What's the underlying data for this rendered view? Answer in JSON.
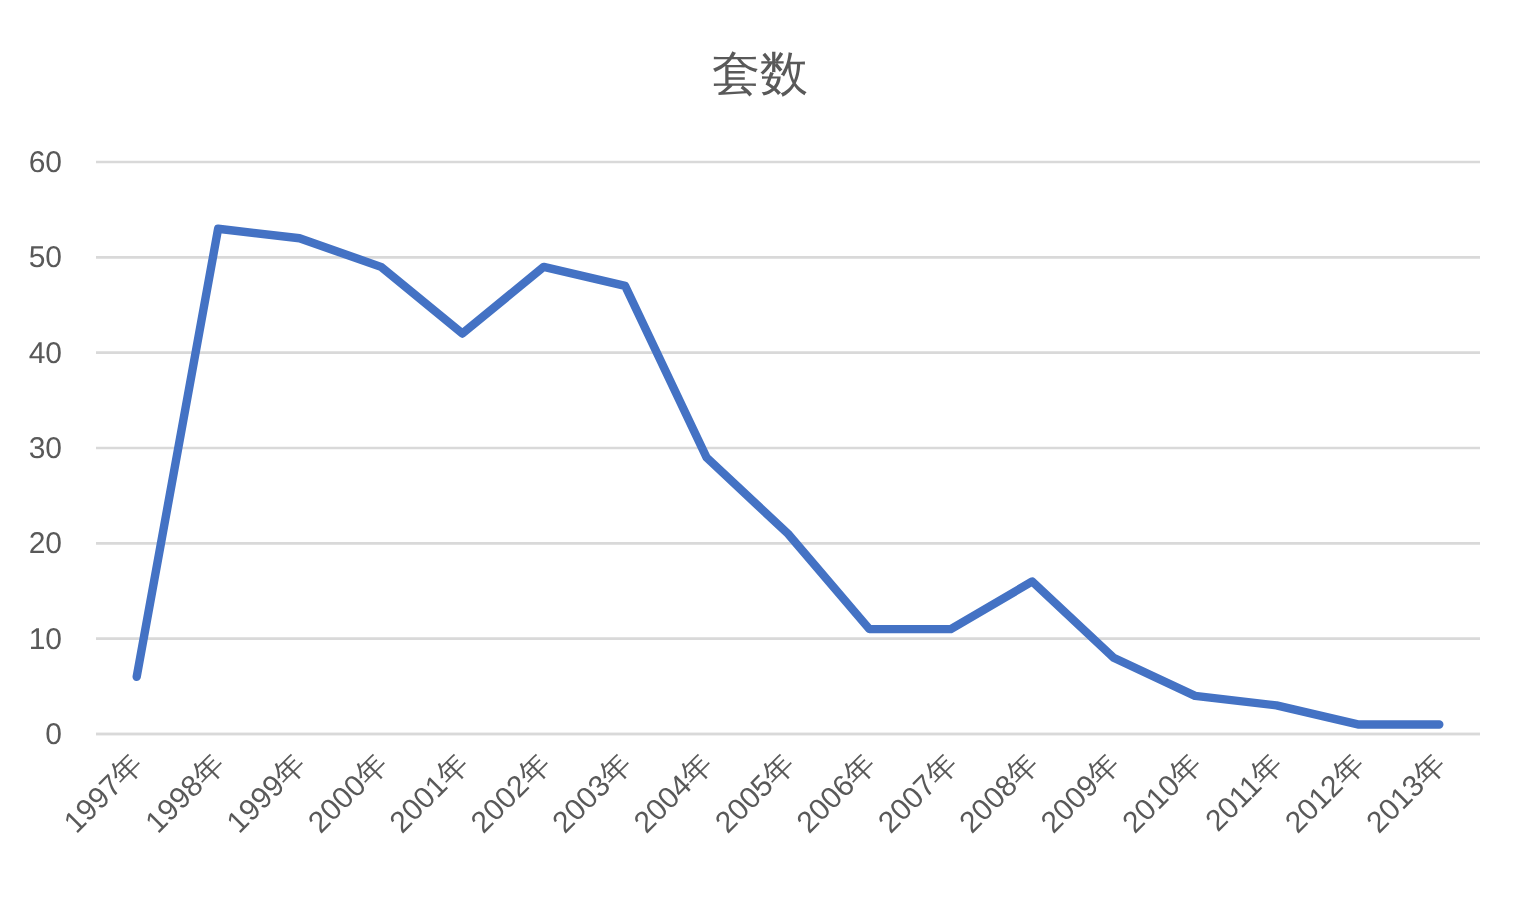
{
  "chart_data": {
    "type": "line",
    "title": "套数",
    "categories": [
      "1997年",
      "1998年",
      "1999年",
      "2000年",
      "2001年",
      "2002年",
      "2003年",
      "2004年",
      "2005年",
      "2006年",
      "2007年",
      "2008年",
      "2009年",
      "2010年",
      "2011年",
      "2012年",
      "2013年"
    ],
    "series": [
      {
        "color": "#4472c4",
        "values": [
          6,
          53,
          52,
          49,
          42,
          49,
          47,
          29,
          21,
          11,
          11,
          16,
          8,
          4,
          3,
          1,
          1
        ]
      }
    ],
    "ylim": [
      0,
      60
    ],
    "yticks": [
      0,
      10,
      20,
      30,
      40,
      50,
      60
    ],
    "grid": "y"
  }
}
